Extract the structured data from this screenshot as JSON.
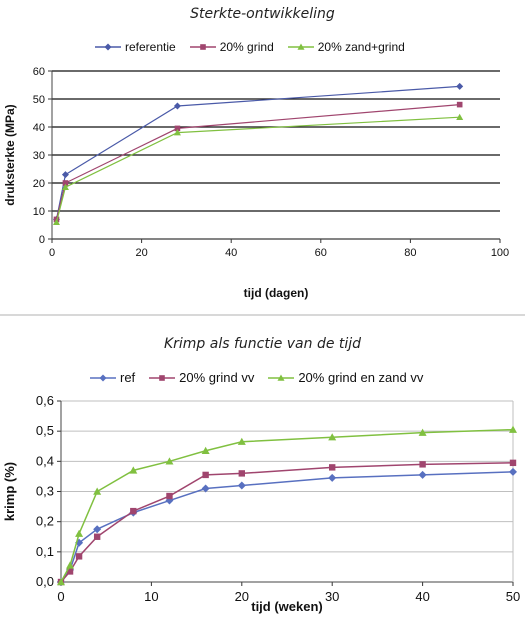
{
  "chart_data": [
    {
      "type": "line",
      "title": "Sterkte-ontwikkeling",
      "xlabel": "tijd (dagen)",
      "ylabel": "druksterkte (MPa)",
      "xlim": [
        0,
        100
      ],
      "ylim": [
        0,
        60
      ],
      "xticks": [
        "0",
        "20",
        "40",
        "60",
        "80",
        "100"
      ],
      "yticks": [
        "0",
        "10",
        "20",
        "30",
        "40",
        "50",
        "60"
      ],
      "grid": "horizontal",
      "legend_position": "top",
      "series": [
        {
          "name": "referentie",
          "color": "#4a5aa8",
          "marker": "diamond",
          "points": [
            [
              1,
              7
            ],
            [
              3,
              23
            ],
            [
              28,
              47.5
            ],
            [
              91,
              54.5
            ]
          ]
        },
        {
          "name": "20% grind",
          "color": "#a0456e",
          "marker": "square",
          "points": [
            [
              1,
              7
            ],
            [
              3,
              20
            ],
            [
              28,
              39.5
            ],
            [
              91,
              48
            ]
          ]
        },
        {
          "name": "20% zand+grind",
          "color": "#80c040",
          "marker": "triangle",
          "points": [
            [
              1,
              6
            ],
            [
              3,
              18.5
            ],
            [
              28,
              38
            ],
            [
              91,
              43.5
            ]
          ]
        }
      ]
    },
    {
      "type": "line",
      "title": "Krimp als functie van de tijd",
      "xlabel": "tijd (weken)",
      "ylabel": "krimp (%)",
      "xlim": [
        0,
        50
      ],
      "ylim": [
        0,
        0.6
      ],
      "xticks": [
        "0",
        "10",
        "20",
        "30",
        "40",
        "50"
      ],
      "yticks": [
        "0,0",
        "0,1",
        "0,2",
        "0,3",
        "0,4",
        "0,5",
        "0,6"
      ],
      "grid": "horizontal",
      "legend_position": "top",
      "series": [
        {
          "name": "ref",
          "color": "#5870c0",
          "marker": "diamond",
          "points": [
            [
              0,
              0
            ],
            [
              1,
              0.04
            ],
            [
              2,
              0.13
            ],
            [
              4,
              0.175
            ],
            [
              8,
              0.23
            ],
            [
              12,
              0.27
            ],
            [
              16,
              0.31
            ],
            [
              20,
              0.32
            ],
            [
              30,
              0.345
            ],
            [
              40,
              0.355
            ],
            [
              50,
              0.365
            ]
          ]
        },
        {
          "name": "20% grind vv",
          "color": "#a0456e",
          "marker": "square",
          "points": [
            [
              0,
              0
            ],
            [
              1,
              0.035
            ],
            [
              2,
              0.085
            ],
            [
              4,
              0.15
            ],
            [
              8,
              0.235
            ],
            [
              12,
              0.285
            ],
            [
              16,
              0.355
            ],
            [
              20,
              0.36
            ],
            [
              30,
              0.38
            ],
            [
              40,
              0.39
            ],
            [
              50,
              0.395
            ]
          ]
        },
        {
          "name": "20% grind en zand vv",
          "color": "#80c040",
          "marker": "triangle",
          "points": [
            [
              0,
              0
            ],
            [
              1,
              0.055
            ],
            [
              2,
              0.16
            ],
            [
              4,
              0.3
            ],
            [
              8,
              0.37
            ],
            [
              12,
              0.4
            ],
            [
              16,
              0.435
            ],
            [
              20,
              0.465
            ],
            [
              30,
              0.48
            ],
            [
              40,
              0.495
            ],
            [
              50,
              0.505
            ]
          ]
        }
      ]
    }
  ]
}
